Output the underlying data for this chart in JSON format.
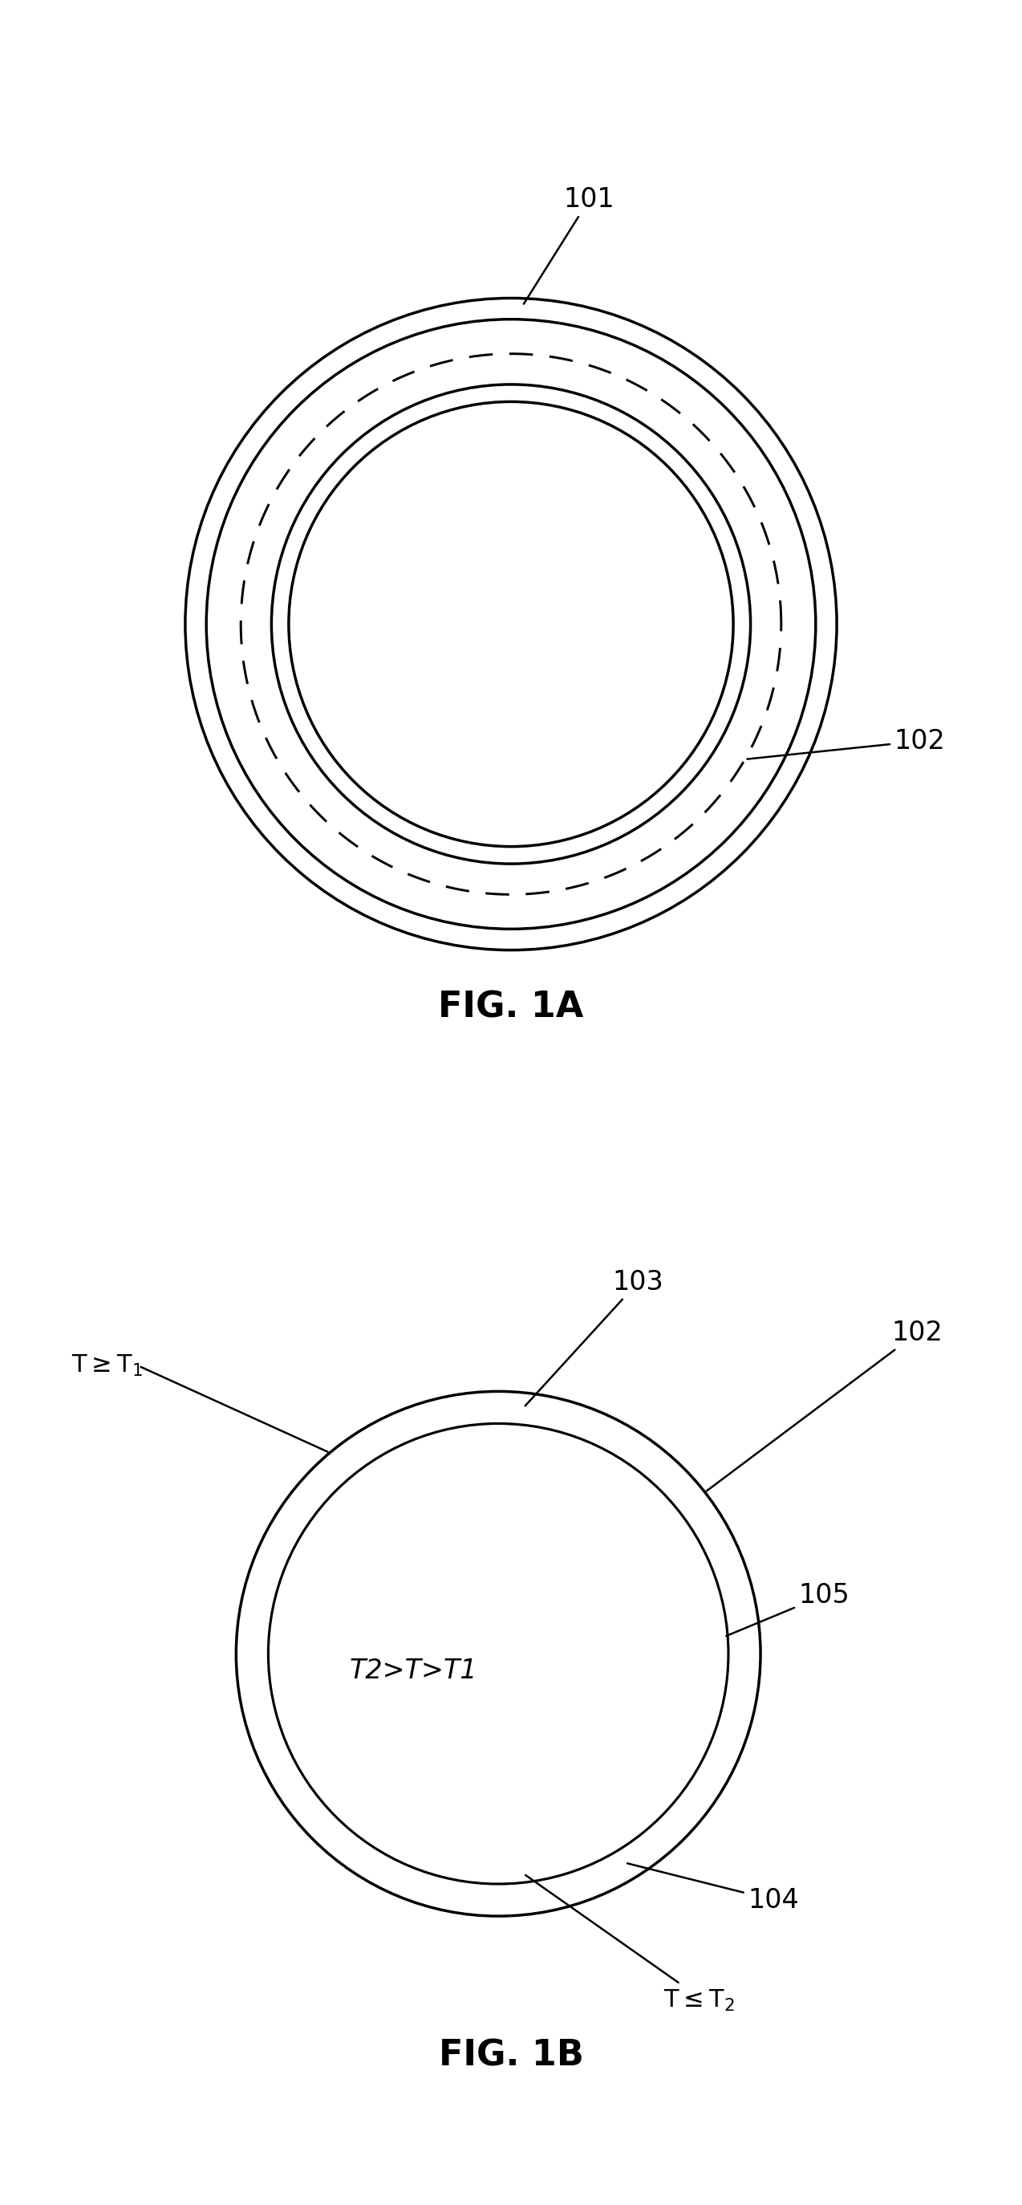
{
  "fig1a_title": "FIG. 1A",
  "fig1b_title": "FIG. 1B",
  "label_101": "101",
  "label_102": "102",
  "label_103": "103",
  "label_104": "104",
  "label_105": "105",
  "label_T1": "T≥T₁",
  "label_T2": "T≤T₂",
  "label_T12": "T2>T>T1",
  "bg_color": "#ffffff",
  "line_color": "#000000"
}
